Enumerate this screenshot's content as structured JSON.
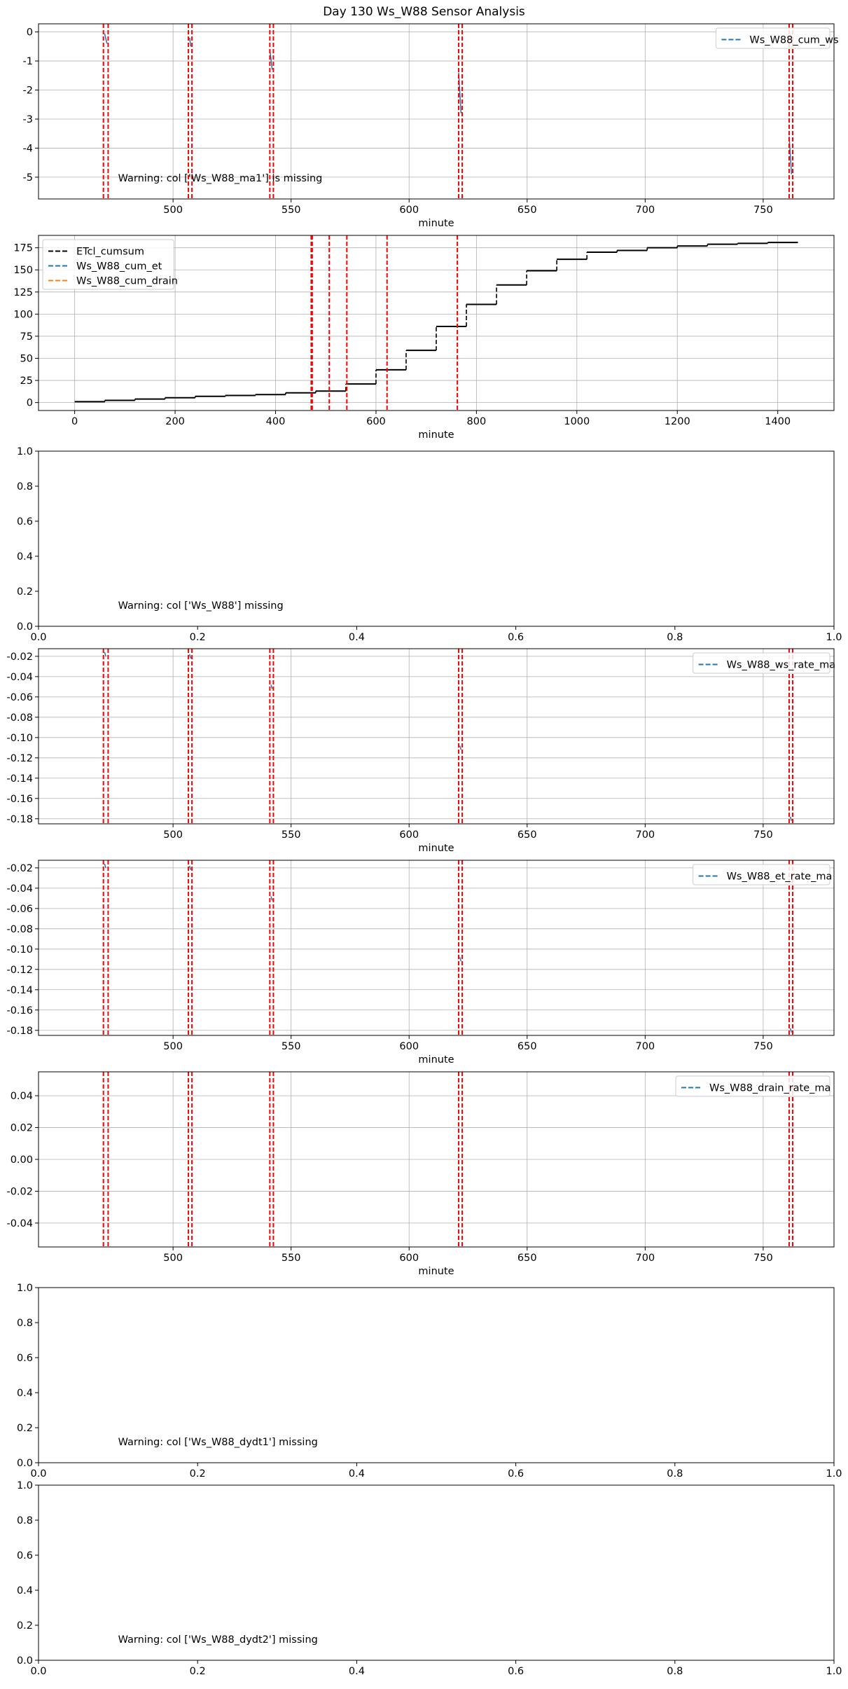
{
  "figure": {
    "title": "Day 130 Ws_W88 Sensor Analysis"
  },
  "chart_data": [
    {
      "type": "line",
      "xlabel": "minute",
      "xlim": [
        443,
        780
      ],
      "ylim": [
        -5.75,
        0.28
      ],
      "xticks": [
        500,
        550,
        600,
        650,
        700,
        750
      ],
      "xtick_labels": [
        "500",
        "550",
        "600",
        "650",
        "700",
        "750"
      ],
      "yticks": [
        0,
        -1,
        -2,
        -3,
        -4,
        -5
      ],
      "ytick_labels": [
        "0",
        "-1",
        "-2",
        "-3",
        "-4",
        "-5"
      ],
      "grid": true,
      "legend": {
        "position": "top-right",
        "entries": [
          {
            "label": "Ws_W88_cum_ws",
            "color": "#1f77b4",
            "style": "dashed"
          }
        ]
      },
      "series": [
        {
          "name": "Ws_W88_cum_ws",
          "color": "#1f77b4",
          "segments": [
            {
              "x": [
                471,
                472
              ],
              "y": [
                -0.05,
                -0.4
              ]
            },
            {
              "x": [
                507,
                507.5
              ],
              "y": [
                -0.2,
                -0.5
              ]
            },
            {
              "x": [
                541,
                542
              ],
              "y": [
                -0.6,
                -1.3
              ]
            },
            {
              "x": [
                621,
                622
              ],
              "y": [
                -1.4,
                -2.8
              ]
            },
            {
              "x": [
                761,
                762
              ],
              "y": [
                -3.6,
                -4.9
              ]
            }
          ]
        }
      ],
      "vlines": {
        "color": "#ff0000",
        "style": "dashed",
        "x": [
          470.5,
          472.5,
          506.5,
          508,
          541,
          542.5,
          621,
          622.5,
          761,
          762.5
        ]
      },
      "annotations": [
        {
          "text": "Warning: col ['Ws_W88_ma1'] is missing"
        }
      ]
    },
    {
      "type": "line",
      "xlabel": "minute",
      "xlim": [
        -72,
        1512
      ],
      "ylim": [
        -9,
        189
      ],
      "xticks": [
        0,
        200,
        400,
        600,
        800,
        1000,
        1200,
        1400
      ],
      "xtick_labels": [
        "0",
        "200",
        "400",
        "600",
        "800",
        "1000",
        "1200",
        "1400"
      ],
      "yticks": [
        0,
        25,
        50,
        75,
        100,
        125,
        150,
        175
      ],
      "ytick_labels": [
        "0",
        "25",
        "50",
        "75",
        "100",
        "125",
        "150",
        "175"
      ],
      "grid": true,
      "legend": {
        "position": "top-left",
        "entries": [
          {
            "label": "ETcl_cumsum",
            "color": "#000000",
            "style": "dashed"
          },
          {
            "label": "Ws_W88_cum_et",
            "color": "#1f77b4",
            "style": "dashed"
          },
          {
            "label": "Ws_W88_cum_drain",
            "color": "#ff7f0e",
            "style": "dashed"
          }
        ]
      },
      "series": [
        {
          "name": "ETcl_cumsum",
          "color": "#000000",
          "step_x": [
            0,
            60,
            120,
            180,
            240,
            300,
            360,
            420,
            480,
            540,
            600,
            660,
            720,
            780,
            840,
            900,
            960,
            1020,
            1080,
            1140,
            1200,
            1260,
            1320,
            1380,
            1440
          ],
          "step_y": [
            1,
            2.5,
            4,
            5.5,
            7,
            8,
            9,
            11,
            13,
            21,
            37,
            59,
            86,
            111,
            133,
            149,
            162,
            170,
            172,
            175,
            177,
            179,
            180,
            181,
            181
          ]
        }
      ],
      "vlines": {
        "color": "#ff0000",
        "style": "dashed",
        "x": [
          471,
          473,
          507,
          542,
          622,
          762
        ]
      },
      "annotations": []
    },
    {
      "type": "line",
      "xlabel": "",
      "xlim": [
        0,
        1
      ],
      "ylim": [
        0,
        1
      ],
      "xticks": [
        0,
        0.2,
        0.4,
        0.6,
        0.8,
        1
      ],
      "xtick_labels": [
        "0.0",
        "0.2",
        "0.4",
        "0.6",
        "0.8",
        "1.0"
      ],
      "yticks": [
        0,
        0.2,
        0.4,
        0.6,
        0.8,
        1
      ],
      "ytick_labels": [
        "0.0",
        "0.2",
        "0.4",
        "0.6",
        "0.8",
        "1.0"
      ],
      "grid": false,
      "series": [],
      "vlines": {
        "color": "#ff0000",
        "style": "dashed",
        "x": []
      },
      "annotations": [
        {
          "text": "Warning: col ['Ws_W88'] missing"
        }
      ]
    },
    {
      "type": "line",
      "xlabel": "minute",
      "xlim": [
        443,
        780
      ],
      "ylim": [
        -0.185,
        -0.0125
      ],
      "xticks": [
        500,
        550,
        600,
        650,
        700,
        750
      ],
      "xtick_labels": [
        "500",
        "550",
        "600",
        "650",
        "700",
        "750"
      ],
      "yticks": [
        -0.02,
        -0.04,
        -0.06,
        -0.08,
        -0.1,
        -0.12,
        -0.14,
        -0.16,
        -0.18
      ],
      "ytick_labels": [
        "-0.02",
        "-0.04",
        "-0.06",
        "-0.08",
        "-0.10",
        "-0.12",
        "-0.14",
        "-0.16",
        "-0.18"
      ],
      "grid": true,
      "legend": {
        "position": "top-right",
        "entries": [
          {
            "label": "Ws_W88_ws_rate_ma",
            "color": "#1f77b4",
            "style": "dashed"
          }
        ]
      },
      "series": [
        {
          "name": "Ws_W88_ws_rate_ma",
          "color": "#1f77b4",
          "segments": [
            {
              "x": [
                471,
                471.5
              ],
              "y": [
                -0.016,
                -0.02
              ]
            },
            {
              "x": [
                507,
                507.5
              ],
              "y": [
                -0.018,
                -0.022
              ]
            },
            {
              "x": [
                541.5,
                542
              ],
              "y": [
                -0.048,
                -0.052
              ]
            },
            {
              "x": [
                621.5,
                622
              ],
              "y": [
                -0.108,
                -0.112
              ]
            },
            {
              "x": [
                761.5,
                762
              ],
              "y": [
                -0.178,
                -0.182
              ]
            }
          ]
        }
      ],
      "vlines": {
        "color": "#ff0000",
        "style": "dashed",
        "x": [
          470.5,
          472.5,
          506.5,
          508,
          541,
          542.5,
          621,
          622.5,
          761,
          762.5
        ]
      },
      "annotations": []
    },
    {
      "type": "line",
      "xlabel": "minute",
      "xlim": [
        443,
        780
      ],
      "ylim": [
        -0.185,
        -0.0125
      ],
      "xticks": [
        500,
        550,
        600,
        650,
        700,
        750
      ],
      "xtick_labels": [
        "500",
        "550",
        "600",
        "650",
        "700",
        "750"
      ],
      "yticks": [
        -0.02,
        -0.04,
        -0.06,
        -0.08,
        -0.1,
        -0.12,
        -0.14,
        -0.16,
        -0.18
      ],
      "ytick_labels": [
        "-0.02",
        "-0.04",
        "-0.06",
        "-0.08",
        "-0.10",
        "-0.12",
        "-0.14",
        "-0.16",
        "-0.18"
      ],
      "grid": true,
      "legend": {
        "position": "top-right",
        "entries": [
          {
            "label": "Ws_W88_et_rate_ma",
            "color": "#1f77b4",
            "style": "dashed"
          }
        ]
      },
      "series": [
        {
          "name": "Ws_W88_et_rate_ma",
          "color": "#1f77b4",
          "segments": [
            {
              "x": [
                471,
                471.5
              ],
              "y": [
                -0.016,
                -0.02
              ]
            },
            {
              "x": [
                507,
                507.5
              ],
              "y": [
                -0.018,
                -0.022
              ]
            },
            {
              "x": [
                541.5,
                542
              ],
              "y": [
                -0.048,
                -0.052
              ]
            },
            {
              "x": [
                621.5,
                622
              ],
              "y": [
                -0.108,
                -0.112
              ]
            },
            {
              "x": [
                761.5,
                762
              ],
              "y": [
                -0.178,
                -0.182
              ]
            }
          ]
        }
      ],
      "vlines": {
        "color": "#ff0000",
        "style": "dashed",
        "x": [
          470.5,
          472.5,
          506.5,
          508,
          541,
          542.5,
          621,
          622.5,
          761,
          762.5
        ]
      },
      "annotations": []
    },
    {
      "type": "line",
      "xlabel": "minute",
      "xlim": [
        443,
        780
      ],
      "ylim": [
        -0.055,
        0.055
      ],
      "xticks": [
        500,
        550,
        600,
        650,
        700,
        750
      ],
      "xtick_labels": [
        "500",
        "550",
        "600",
        "650",
        "700",
        "750"
      ],
      "yticks": [
        0.04,
        0.02,
        0,
        -0.02,
        -0.04
      ],
      "ytick_labels": [
        "0.04",
        "0.02",
        "0.00",
        "-0.02",
        "-0.04"
      ],
      "grid": true,
      "legend": {
        "position": "top-right",
        "entries": [
          {
            "label": "Ws_W88_drain_rate_ma",
            "color": "#1f77b4",
            "style": "dashed"
          }
        ]
      },
      "series": [],
      "vlines": {
        "color": "#ff0000",
        "style": "dashed",
        "x": [
          470.5,
          472.5,
          506.5,
          508,
          541,
          542.5,
          621,
          622.5,
          761,
          762.5
        ]
      },
      "annotations": []
    },
    {
      "type": "line",
      "xlabel": "",
      "xlim": [
        0,
        1
      ],
      "ylim": [
        0,
        1
      ],
      "xticks": [
        0,
        0.2,
        0.4,
        0.6,
        0.8,
        1
      ],
      "xtick_labels": [
        "0.0",
        "0.2",
        "0.4",
        "0.6",
        "0.8",
        "1.0"
      ],
      "yticks": [
        0,
        0.2,
        0.4,
        0.6,
        0.8,
        1
      ],
      "ytick_labels": [
        "0.0",
        "0.2",
        "0.4",
        "0.6",
        "0.8",
        "1.0"
      ],
      "grid": false,
      "series": [],
      "vlines": {
        "color": "#ff0000",
        "style": "dashed",
        "x": []
      },
      "annotations": [
        {
          "text": "Warning: col ['Ws_W88_dydt1'] missing"
        }
      ]
    },
    {
      "type": "line",
      "xlabel": "",
      "xlim": [
        0,
        1
      ],
      "ylim": [
        0,
        1
      ],
      "xticks": [
        0,
        0.2,
        0.4,
        0.6,
        0.8,
        1
      ],
      "xtick_labels": [
        "0.0",
        "0.2",
        "0.4",
        "0.6",
        "0.8",
        "1.0"
      ],
      "yticks": [
        0,
        0.2,
        0.4,
        0.6,
        0.8,
        1
      ],
      "ytick_labels": [
        "0.0",
        "0.2",
        "0.4",
        "0.6",
        "0.8",
        "1.0"
      ],
      "grid": false,
      "series": [],
      "vlines": {
        "color": "#ff0000",
        "style": "dashed",
        "x": []
      },
      "annotations": [
        {
          "text": "Warning: col ['Ws_W88_dydt2'] missing"
        }
      ]
    }
  ]
}
